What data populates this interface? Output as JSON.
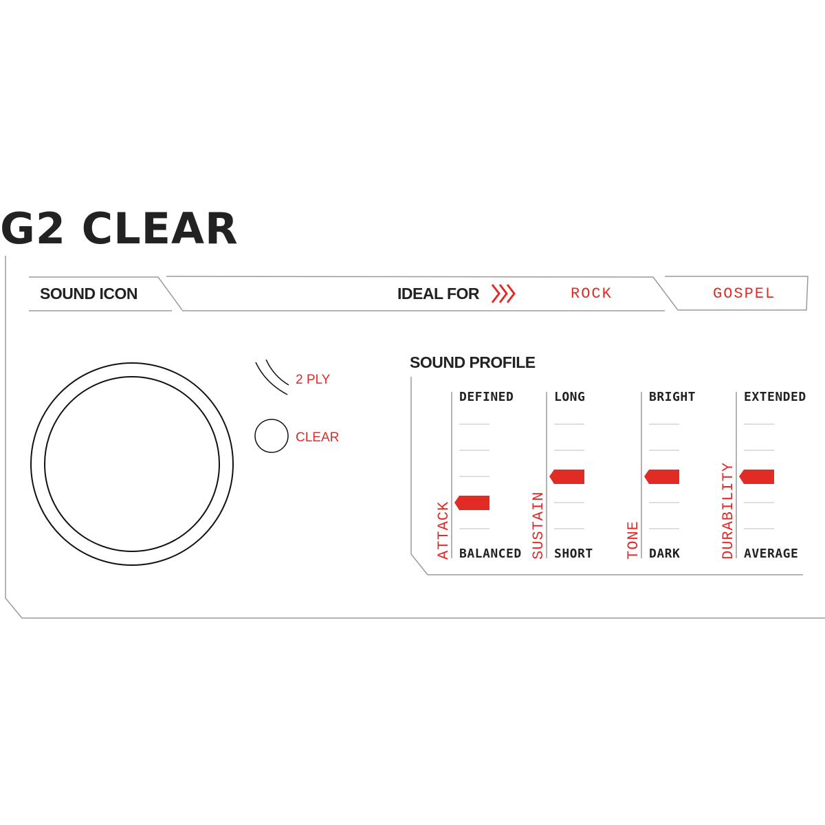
{
  "title": "G2 CLEAR",
  "sound_icon": {
    "label": "SOUND ICON",
    "legend": [
      {
        "icon": "double-arc-icon",
        "label": "2 PLY"
      },
      {
        "icon": "circle-icon",
        "label": "CLEAR"
      }
    ]
  },
  "ideal_for": {
    "label": "IDEAL FOR",
    "icon": "triple-chevron-right-icon",
    "genres": [
      "ROCK",
      "GOSPEL"
    ]
  },
  "sound_profile": {
    "title": "SOUND PROFILE",
    "scale_steps": 5,
    "sliders": [
      {
        "name": "ATTACK",
        "top": "DEFINED",
        "bottom": "BALANCED",
        "level": 2
      },
      {
        "name": "SUSTAIN",
        "top": "LONG",
        "bottom": "SHORT",
        "level": 3
      },
      {
        "name": "TONE",
        "top": "BRIGHT",
        "bottom": "DARK",
        "level": 3
      },
      {
        "name": "DURABILITY",
        "top": "EXTENDED",
        "bottom": "AVERAGE",
        "level": 3
      }
    ]
  },
  "colors": {
    "accent": "#e32b26",
    "text": "#222222",
    "line": "#9a9a9a"
  }
}
